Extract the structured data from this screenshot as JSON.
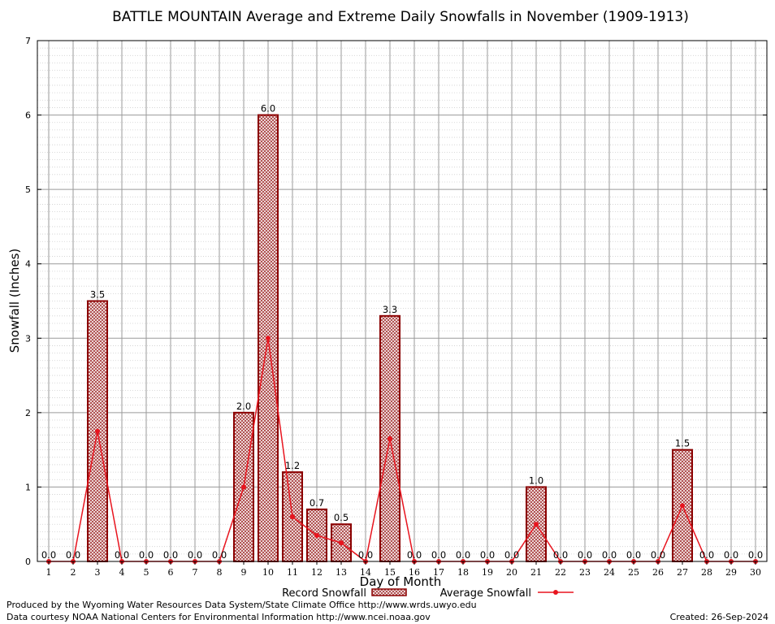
{
  "chart_data": {
    "type": "bar",
    "title": "BATTLE MOUNTAIN Average and Extreme Daily Snowfalls in November (1909-1913)",
    "xlabel": "Day of Month",
    "ylabel": "Snowfall (Inches)",
    "ylim": [
      0,
      7
    ],
    "yticks": [
      "0",
      "1",
      "2",
      "3",
      "4",
      "5",
      "6",
      "7"
    ],
    "categories": [
      "1",
      "2",
      "3",
      "4",
      "5",
      "6",
      "7",
      "8",
      "9",
      "10",
      "11",
      "12",
      "13",
      "14",
      "15",
      "16",
      "17",
      "18",
      "19",
      "20",
      "21",
      "22",
      "23",
      "24",
      "25",
      "26",
      "27",
      "28",
      "29",
      "30"
    ],
    "series": [
      {
        "name": "Record Snowfall",
        "kind": "bar",
        "color": "#8b0000",
        "values": [
          0.0,
          0.0,
          3.5,
          0.0,
          0.0,
          0.0,
          0.0,
          0.0,
          2.0,
          6.0,
          1.2,
          0.7,
          0.5,
          0.0,
          3.3,
          0.0,
          0.0,
          0.0,
          0.0,
          0.0,
          1.0,
          0.0,
          0.0,
          0.0,
          0.0,
          0.0,
          1.5,
          0.0,
          0.0,
          0.0
        ],
        "labels": [
          "0.0",
          "0.0",
          "3.5",
          "0.0",
          "0.0",
          "0.0",
          "0.0",
          "0.0",
          "2.0",
          "6.0",
          "1.2",
          "0.7",
          "0.5",
          "0.0",
          "3.3",
          "0.0",
          "0.0",
          "0.0",
          "0.0",
          "0.0",
          "1.0",
          "0.0",
          "0.0",
          "0.0",
          "0.0",
          "0.0",
          "1.5",
          "0.0",
          "0.0",
          "0.0"
        ]
      },
      {
        "name": "Average Snowfall",
        "kind": "line",
        "color": "#e8141e",
        "values": [
          0,
          0,
          1.75,
          0,
          0,
          0,
          0,
          0,
          1.0,
          3.0,
          0.6,
          0.35,
          0.25,
          0,
          1.65,
          0,
          0,
          0,
          0,
          0,
          0.5,
          0,
          0,
          0,
          0,
          0,
          0.75,
          0,
          0,
          0
        ]
      }
    ],
    "grid": true,
    "legend": "bottom-center"
  },
  "footer": {
    "line1": "Produced by the Wyoming Water Resources Data System/State Climate Office http://www.wrds.uwyo.edu",
    "line2": "Data courtesy NOAA National Centers for Environmental Information http://www.ncei.noaa.gov",
    "created": "Created: 26-Sep-2024"
  }
}
